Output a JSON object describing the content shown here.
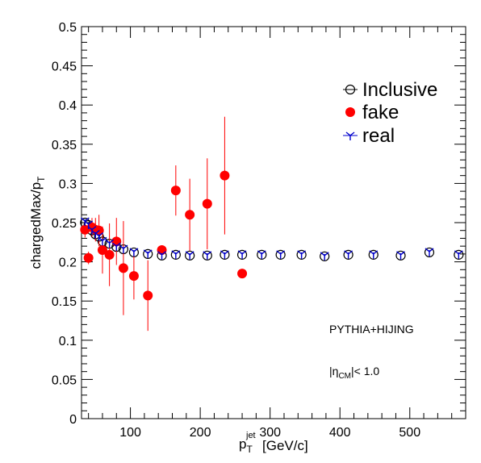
{
  "chart_data": {
    "type": "scatter",
    "xlabel": {
      "main": "p",
      "sub": "T",
      "sup": "jet",
      "unit": "[GeV/c]"
    },
    "ylabel": {
      "main": "chargedMax/p",
      "sub": "T"
    },
    "xlim": [
      30,
      580
    ],
    "ylim": [
      0,
      0.5
    ],
    "x_ticks": [
      100,
      200,
      300,
      400,
      500
    ],
    "y_ticks": [
      "0",
      "0.05",
      "0.1",
      "0.15",
      "0.2",
      "0.25",
      "0.3",
      "0.35",
      "0.4",
      "0.45",
      "0.5"
    ],
    "legend_position": "top-right",
    "grid": false,
    "annotations": {
      "generator": "PYTHIA+HIJING",
      "eta_cut": {
        "pre": "|η",
        "sub": "CM",
        "post": "|< 1.0"
      }
    },
    "series": [
      {
        "name": "Inclusive",
        "marker": "open-circle",
        "color": "#000000",
        "points": [
          {
            "x": 35,
            "y": 0.25,
            "err": 0.003
          },
          {
            "x": 40,
            "y": 0.247,
            "err": 0.003
          },
          {
            "x": 45,
            "y": 0.24,
            "err": 0.003
          },
          {
            "x": 50,
            "y": 0.235,
            "err": 0.003
          },
          {
            "x": 55,
            "y": 0.232,
            "err": 0.003
          },
          {
            "x": 60,
            "y": 0.226,
            "err": 0.003
          },
          {
            "x": 70,
            "y": 0.223,
            "err": 0.003
          },
          {
            "x": 80,
            "y": 0.219,
            "err": 0.003
          },
          {
            "x": 90,
            "y": 0.216,
            "err": 0.003
          },
          {
            "x": 105,
            "y": 0.212,
            "err": 0.003
          },
          {
            "x": 125,
            "y": 0.21,
            "err": 0.003
          },
          {
            "x": 145,
            "y": 0.208,
            "err": 0.003
          },
          {
            "x": 165,
            "y": 0.209,
            "err": 0.003
          },
          {
            "x": 185,
            "y": 0.208,
            "err": 0.003
          },
          {
            "x": 210,
            "y": 0.208,
            "err": 0.003
          },
          {
            "x": 235,
            "y": 0.209,
            "err": 0.003
          },
          {
            "x": 260,
            "y": 0.209,
            "err": 0.003
          },
          {
            "x": 288,
            "y": 0.209,
            "err": 0.003
          },
          {
            "x": 315,
            "y": 0.209,
            "err": 0.003
          },
          {
            "x": 345,
            "y": 0.209,
            "err": 0.003
          },
          {
            "x": 378,
            "y": 0.207,
            "err": 0.003
          },
          {
            "x": 412,
            "y": 0.209,
            "err": 0.003
          },
          {
            "x": 448,
            "y": 0.209,
            "err": 0.003
          },
          {
            "x": 487,
            "y": 0.208,
            "err": 0.003
          },
          {
            "x": 528,
            "y": 0.212,
            "err": 0.003
          },
          {
            "x": 570,
            "y": 0.209,
            "err": 0.003
          }
        ]
      },
      {
        "name": "fake",
        "marker": "filled-circle",
        "color": "#ff0000",
        "points": [
          {
            "x": 35,
            "y": 0.241,
            "err": 0.01
          },
          {
            "x": 40,
            "y": 0.205,
            "err": 0.008
          },
          {
            "x": 45,
            "y": 0.244,
            "err": 0.012
          },
          {
            "x": 50,
            "y": 0.241,
            "err": 0.015
          },
          {
            "x": 55,
            "y": 0.24,
            "err": 0.02
          },
          {
            "x": 60,
            "y": 0.215,
            "err": 0.03
          },
          {
            "x": 70,
            "y": 0.209,
            "err": 0.04
          },
          {
            "x": 80,
            "y": 0.226,
            "err": 0.03
          },
          {
            "x": 90,
            "y": 0.192,
            "err": 0.06
          },
          {
            "x": 105,
            "y": 0.182,
            "err": 0.03
          },
          {
            "x": 125,
            "y": 0.157,
            "err": 0.045
          },
          {
            "x": 145,
            "y": 0.215,
            "err": 0.005
          },
          {
            "x": 165,
            "y": 0.291,
            "err": 0.032
          },
          {
            "x": 185,
            "y": 0.26,
            "err": 0.046
          },
          {
            "x": 210,
            "y": 0.274,
            "err": 0.058
          },
          {
            "x": 235,
            "y": 0.31,
            "err": 0.075
          },
          {
            "x": 260,
            "y": 0.185,
            "err": 0.0
          }
        ]
      },
      {
        "name": "real",
        "marker": "tri-star",
        "color": "#0000cc",
        "points": [
          {
            "x": 35,
            "y": 0.252,
            "err": 0.002
          },
          {
            "x": 40,
            "y": 0.248,
            "err": 0.002
          },
          {
            "x": 45,
            "y": 0.241,
            "err": 0.002
          },
          {
            "x": 50,
            "y": 0.236,
            "err": 0.002
          },
          {
            "x": 55,
            "y": 0.233,
            "err": 0.002
          },
          {
            "x": 60,
            "y": 0.227,
            "err": 0.002
          },
          {
            "x": 70,
            "y": 0.224,
            "err": 0.002
          },
          {
            "x": 80,
            "y": 0.22,
            "err": 0.002
          },
          {
            "x": 90,
            "y": 0.217,
            "err": 0.002
          },
          {
            "x": 105,
            "y": 0.213,
            "err": 0.002
          },
          {
            "x": 125,
            "y": 0.211,
            "err": 0.002
          },
          {
            "x": 145,
            "y": 0.209,
            "err": 0.002
          },
          {
            "x": 165,
            "y": 0.21,
            "err": 0.002
          },
          {
            "x": 185,
            "y": 0.209,
            "err": 0.002
          },
          {
            "x": 210,
            "y": 0.209,
            "err": 0.002
          },
          {
            "x": 235,
            "y": 0.21,
            "err": 0.002
          },
          {
            "x": 260,
            "y": 0.21,
            "err": 0.002
          },
          {
            "x": 288,
            "y": 0.21,
            "err": 0.002
          },
          {
            "x": 315,
            "y": 0.21,
            "err": 0.002
          },
          {
            "x": 345,
            "y": 0.21,
            "err": 0.002
          },
          {
            "x": 378,
            "y": 0.208,
            "err": 0.002
          },
          {
            "x": 412,
            "y": 0.21,
            "err": 0.002
          },
          {
            "x": 448,
            "y": 0.21,
            "err": 0.002
          },
          {
            "x": 487,
            "y": 0.209,
            "err": 0.002
          },
          {
            "x": 528,
            "y": 0.213,
            "err": 0.002
          },
          {
            "x": 570,
            "y": 0.21,
            "err": 0.002
          }
        ]
      }
    ]
  }
}
